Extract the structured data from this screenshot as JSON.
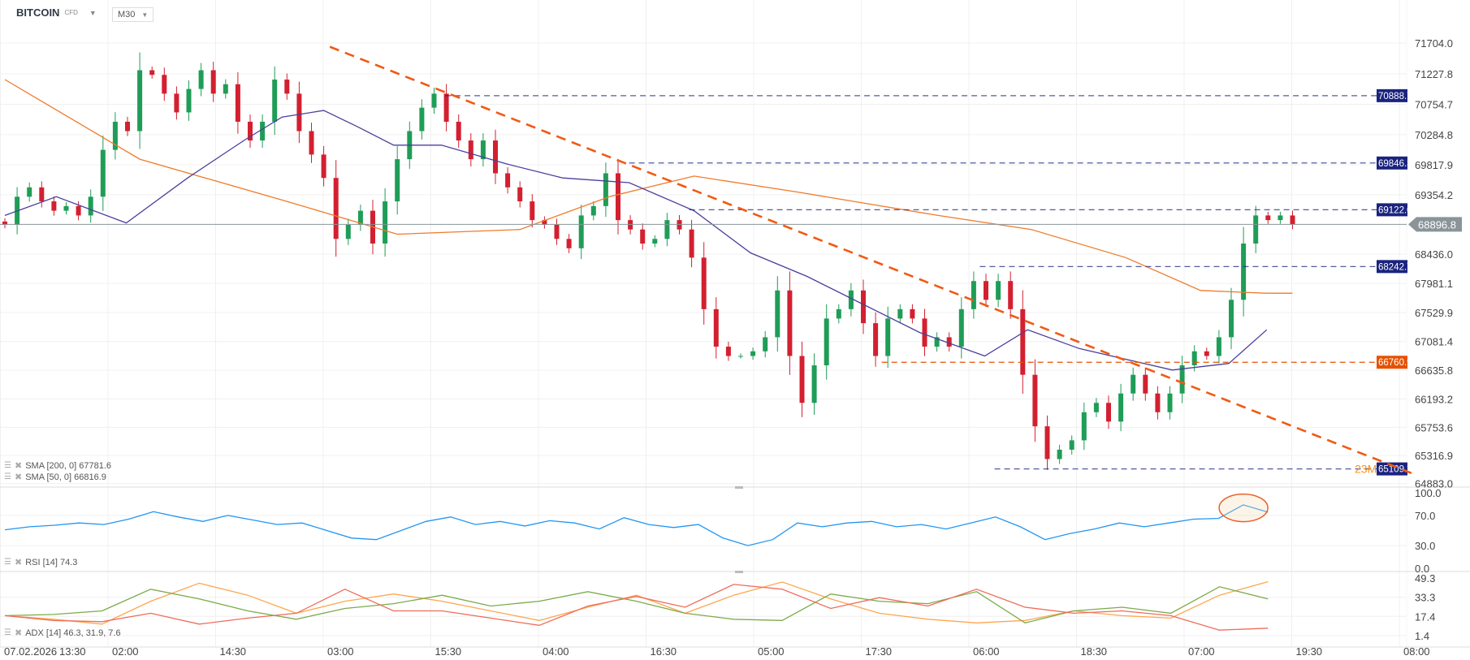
{
  "header": {
    "symbol": "BITCOIN",
    "symbol_type": "CFD",
    "timeframe": "M30"
  },
  "legends": {
    "sma200": "SMA [200,  0] 67781.6",
    "sma50": "SMA [50, 0] 66816.9",
    "rsi": "RSI  [14]  74.3",
    "adx": "ADX  [14]  46.3,  31.9,  7.6"
  },
  "countdown_text": "23M",
  "colors": {
    "up": "#1f9d57",
    "down": "#d32030",
    "sma200": "#f07a2a",
    "sma50": "#4b3f9c",
    "hline": "#1a237e",
    "hline_orange": "#e65100",
    "trendline": "#f05a14",
    "rsi": "#2196f3",
    "adx": "#ffa64d",
    "plus_di": "#7cab4a",
    "minus_di": "#ef6c5a",
    "current_price": "#8a9499"
  },
  "chart_data": {
    "type": "candlestick",
    "title": "",
    "x_tick_labels": [
      "07.02.2026",
      "13:30",
      "02:00",
      "14:30",
      "03:00",
      "15:30",
      "04:00",
      "16:30",
      "05:00",
      "17:30",
      "06:00",
      "18:30",
      "07:00",
      "19:30",
      "08:00"
    ],
    "price_ticks": [
      71704.0,
      71227.8,
      70754.7,
      70284.8,
      69817.9,
      69354.2,
      68436.0,
      67981.1,
      67529.9,
      67081.4,
      66635.8,
      66193.2,
      65753.6,
      65316.9,
      64883.0
    ],
    "price_range": [
      64883.0,
      71704.0
    ],
    "grid": true,
    "closes": [
      68889,
      69324,
      69469,
      69252,
      69107,
      69179,
      69034,
      69324,
      70050,
      70485,
      70340,
      71283,
      71211,
      70920,
      70630,
      70993,
      71283,
      70920,
      71066,
      70485,
      70195,
      70485,
      71138,
      70920,
      70340,
      69977,
      69615,
      68671,
      68889,
      69107,
      68599,
      69252,
      69905,
      70340,
      70703,
      70920,
      70485,
      70195,
      69905,
      70195,
      69687,
      69469,
      69252,
      68962,
      68889,
      68671,
      68526,
      69034,
      69179,
      69687,
      68962,
      68817,
      68599,
      68671,
      68962,
      68817,
      68381,
      67583,
      67003,
      66858,
      66858,
      66930,
      67148,
      67873,
      66858,
      66132,
      66713,
      67438,
      67583,
      67873,
      67366,
      66858,
      67438,
      67583,
      67438,
      67003,
      67148,
      67003,
      67583,
      68018,
      67728,
      68018,
      67583,
      66567,
      65769,
      65262,
      65407,
      65552,
      65987,
      66132,
      65842,
      66277,
      66567,
      66277,
      65987,
      66277,
      66713,
      66930,
      66858,
      67148,
      67728,
      68599,
      69034,
      68962,
      69034,
      68897
    ],
    "sma200": [
      [
        0,
        71138
      ],
      [
        11,
        69905
      ],
      [
        23,
        69252
      ],
      [
        32,
        68744
      ],
      [
        42,
        68817
      ],
      [
        49.3,
        69324
      ],
      [
        56.2,
        69644
      ],
      [
        64.6,
        69397
      ],
      [
        76.1,
        69034
      ],
      [
        83.7,
        68817
      ],
      [
        91.4,
        68381
      ],
      [
        97.5,
        67873
      ],
      [
        102.8,
        67830
      ],
      [
        105,
        67830
      ]
    ],
    "sma50": [
      [
        0,
        69034
      ],
      [
        4.2,
        69324
      ],
      [
        9.9,
        68918
      ],
      [
        14.9,
        69615
      ],
      [
        19.5,
        70195
      ],
      [
        22.6,
        70558
      ],
      [
        26,
        70659
      ],
      [
        28.7,
        70413
      ],
      [
        31.7,
        70122
      ],
      [
        35.6,
        70122
      ],
      [
        40.9,
        69832
      ],
      [
        45.5,
        69615
      ],
      [
        50.9,
        69542
      ],
      [
        56.2,
        69107
      ],
      [
        60.8,
        68454
      ],
      [
        65.4,
        68091
      ],
      [
        70,
        67656
      ],
      [
        74.6,
        67221
      ],
      [
        79.9,
        66858
      ],
      [
        83.4,
        67264
      ],
      [
        87.6,
        66974
      ],
      [
        95.2,
        66640
      ],
      [
        99.8,
        66742
      ],
      [
        102.9,
        67264
      ]
    ],
    "current_price": {
      "value": 68896.8,
      "label": "68896.8"
    },
    "horizontal_levels": [
      {
        "value": 70888.7,
        "label": "70888.7",
        "start_bar": 35.9,
        "style": "navy"
      },
      {
        "value": 69846.3,
        "label": "69846.3",
        "start_bar": 50.9,
        "style": "navy"
      },
      {
        "value": 69122.0,
        "label": "69122.0",
        "start_bar": 55.8,
        "style": "navy"
      },
      {
        "value": 68242.7,
        "label": "68242.7",
        "start_bar": 79.5,
        "style": "navy"
      },
      {
        "value": 66760.9,
        "label": "66760.9",
        "start_bar": 71.5,
        "style": "orange"
      },
      {
        "value": 65109.3,
        "label": "65109.3",
        "start_bar": 80.7,
        "style": "navy"
      }
    ],
    "trendline": {
      "from": [
        26.5,
        71646
      ],
      "to": [
        114.7,
        65044
      ]
    },
    "rsi": {
      "ticks": [
        100.0,
        70.0,
        30.0,
        0.0
      ],
      "values": [
        51,
        55,
        57,
        60,
        58,
        65,
        75,
        68,
        62,
        70,
        64,
        58,
        60,
        50,
        40,
        38,
        50,
        62,
        68,
        58,
        62,
        56,
        63,
        60,
        52,
        67,
        58,
        54,
        58,
        40,
        30,
        38,
        60,
        55,
        60,
        62,
        55,
        58,
        52,
        60,
        68,
        55,
        38,
        46,
        52,
        60,
        55,
        60,
        65,
        66,
        84,
        74.3
      ],
      "highlight_bars": [
        99,
        103
      ]
    },
    "adx": {
      "ticks": [
        49.3,
        33.3,
        17.4,
        1.4
      ],
      "adx": [
        18,
        15,
        11,
        30,
        45,
        35,
        20,
        30,
        36,
        30,
        22,
        14,
        25,
        35,
        20,
        35,
        46,
        32,
        20,
        15,
        12,
        14,
        22,
        18,
        16,
        35,
        46.3
      ],
      "plus_di": [
        18,
        19,
        22,
        40,
        32,
        22,
        15,
        24,
        28,
        35,
        26,
        30,
        38,
        30,
        20,
        15,
        14,
        36,
        30,
        28,
        38,
        12,
        22,
        25,
        20,
        42,
        31.9
      ],
      "minus_di": [
        18,
        14,
        13,
        20,
        11,
        16,
        20,
        40,
        22,
        22,
        16,
        10,
        26,
        34,
        25,
        44,
        40,
        24,
        33,
        26,
        40,
        25,
        20,
        22,
        18,
        6,
        7.6
      ]
    }
  }
}
